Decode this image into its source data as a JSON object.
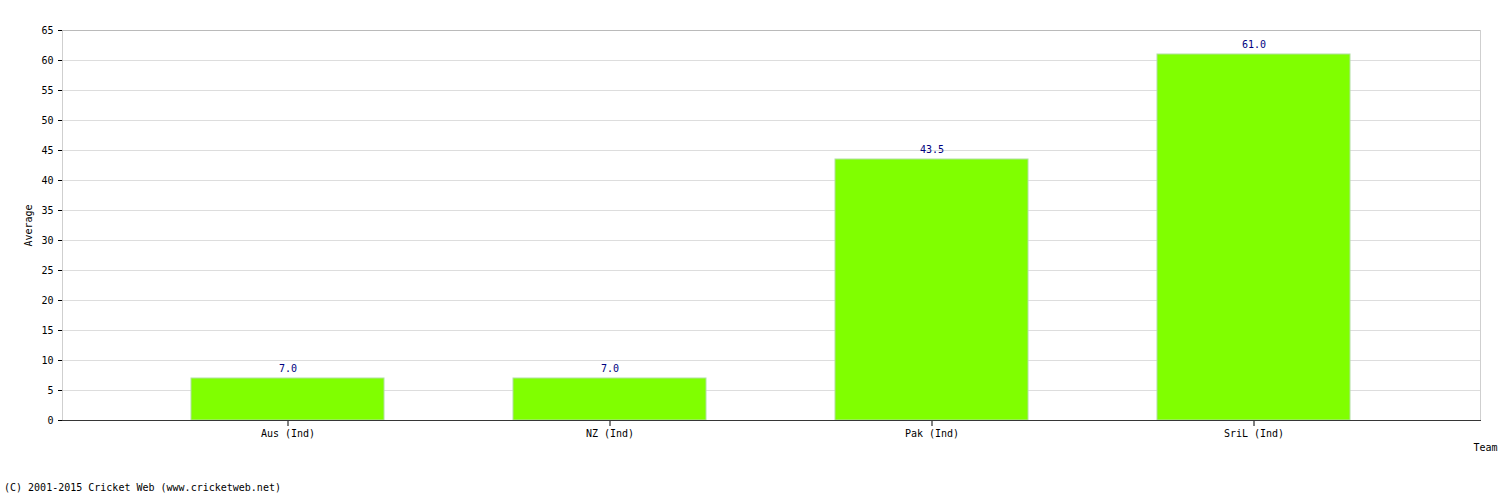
{
  "chart_data": {
    "type": "bar",
    "categories": [
      "Aus (Ind)",
      "NZ (Ind)",
      "Pak (Ind)",
      "SriL (Ind)"
    ],
    "values": [
      7,
      7,
      43.5,
      61
    ],
    "value_labels": [
      "7.0",
      "7.0",
      "43.5",
      "61.0"
    ],
    "data_labels": true,
    "color": "#80ff00",
    "x_label": "Team",
    "y_label": "Average",
    "ylim": [
      0,
      65
    ],
    "yticks": [
      0,
      5,
      10,
      15,
      20,
      25,
      30,
      35,
      40,
      45,
      50,
      55,
      60,
      65
    ],
    "grid": true,
    "caption": "(C) 2001-2015 Cricket Web (www.cricketweb.net)"
  }
}
